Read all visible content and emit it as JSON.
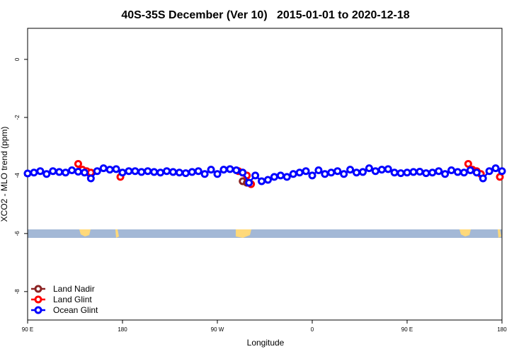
{
  "chart_data": {
    "type": "line",
    "title": "40S-35S December (Ver 10)   2015-01-01 to 2020-12-18",
    "x_label": "Longitude",
    "y_label": "XCO2 - MLO trend (ppm)",
    "xlim": [
      90,
      540
    ],
    "ylim": [
      -8.98,
      1.07
    ],
    "xticks": [
      {
        "value": 90,
        "label": "90 E"
      },
      {
        "value": 180,
        "label": "180"
      },
      {
        "value": 270,
        "label": "90 W"
      },
      {
        "value": 360,
        "label": "0"
      },
      {
        "value": 450,
        "label": "90 E"
      },
      {
        "value": 540,
        "label": "180"
      }
    ],
    "yticks": [
      -8,
      -6,
      -4,
      -2,
      0
    ],
    "legend_position": "bottom-left",
    "series": [
      {
        "name": "Land Nadir",
        "color": "#8b2323",
        "x": [
          294,
          298
        ],
        "values": [
          -4.2,
          -4.25
        ]
      },
      {
        "name": "Land Glint",
        "color": "#ff0000",
        "x": [
          138,
          142,
          146,
          150,
          null,
          178,
          null,
          290,
          294,
          298,
          302,
          null,
          508,
          512,
          516,
          520,
          null,
          538
        ],
        "values": [
          -3.6,
          -3.8,
          -3.85,
          -3.9,
          null,
          -4.05,
          null,
          -3.85,
          -3.9,
          -4.0,
          -4.3,
          null,
          -3.6,
          -3.8,
          -3.85,
          -3.95,
          null,
          -4.05
        ]
      },
      {
        "name": "Ocean Glint",
        "color": "#0000ff",
        "x": [
          90,
          96,
          102,
          108,
          114,
          120,
          126,
          132,
          138,
          144,
          150,
          156,
          162,
          168,
          174,
          180,
          186,
          192,
          198,
          204,
          210,
          216,
          222,
          228,
          234,
          240,
          246,
          252,
          258,
          264,
          270,
          276,
          282,
          288,
          294,
          300,
          306,
          312,
          318,
          324,
          330,
          336,
          342,
          348,
          354,
          360,
          366,
          372,
          378,
          384,
          390,
          396,
          402,
          408,
          414,
          420,
          426,
          432,
          438,
          444,
          450,
          456,
          462,
          468,
          474,
          480,
          486,
          492,
          498,
          504,
          510,
          516,
          522,
          528,
          534,
          540
        ],
        "values": [
          -3.93,
          -3.9,
          -3.85,
          -3.95,
          -3.85,
          -3.88,
          -3.9,
          -3.82,
          -3.87,
          -3.9,
          -4.1,
          -3.85,
          -3.75,
          -3.8,
          -3.78,
          -3.9,
          -3.85,
          -3.85,
          -3.88,
          -3.85,
          -3.88,
          -3.9,
          -3.85,
          -3.88,
          -3.9,
          -3.92,
          -3.88,
          -3.85,
          -3.95,
          -3.8,
          -3.95,
          -3.8,
          -3.78,
          -3.82,
          -3.9,
          -4.25,
          -4.0,
          -4.2,
          -4.15,
          -4.05,
          -4.0,
          -4.05,
          -3.95,
          -3.9,
          -3.85,
          -4.0,
          -3.82,
          -3.95,
          -3.9,
          -3.85,
          -3.95,
          -3.8,
          -3.9,
          -3.88,
          -3.75,
          -3.85,
          -3.8,
          -3.78,
          -3.9,
          -3.92,
          -3.9,
          -3.88,
          -3.87,
          -3.92,
          -3.9,
          -3.85,
          -3.95,
          -3.82,
          -3.88,
          -3.9,
          -3.82,
          -3.9,
          -4.1,
          -3.85,
          -3.75,
          -3.85
        ]
      }
    ]
  }
}
